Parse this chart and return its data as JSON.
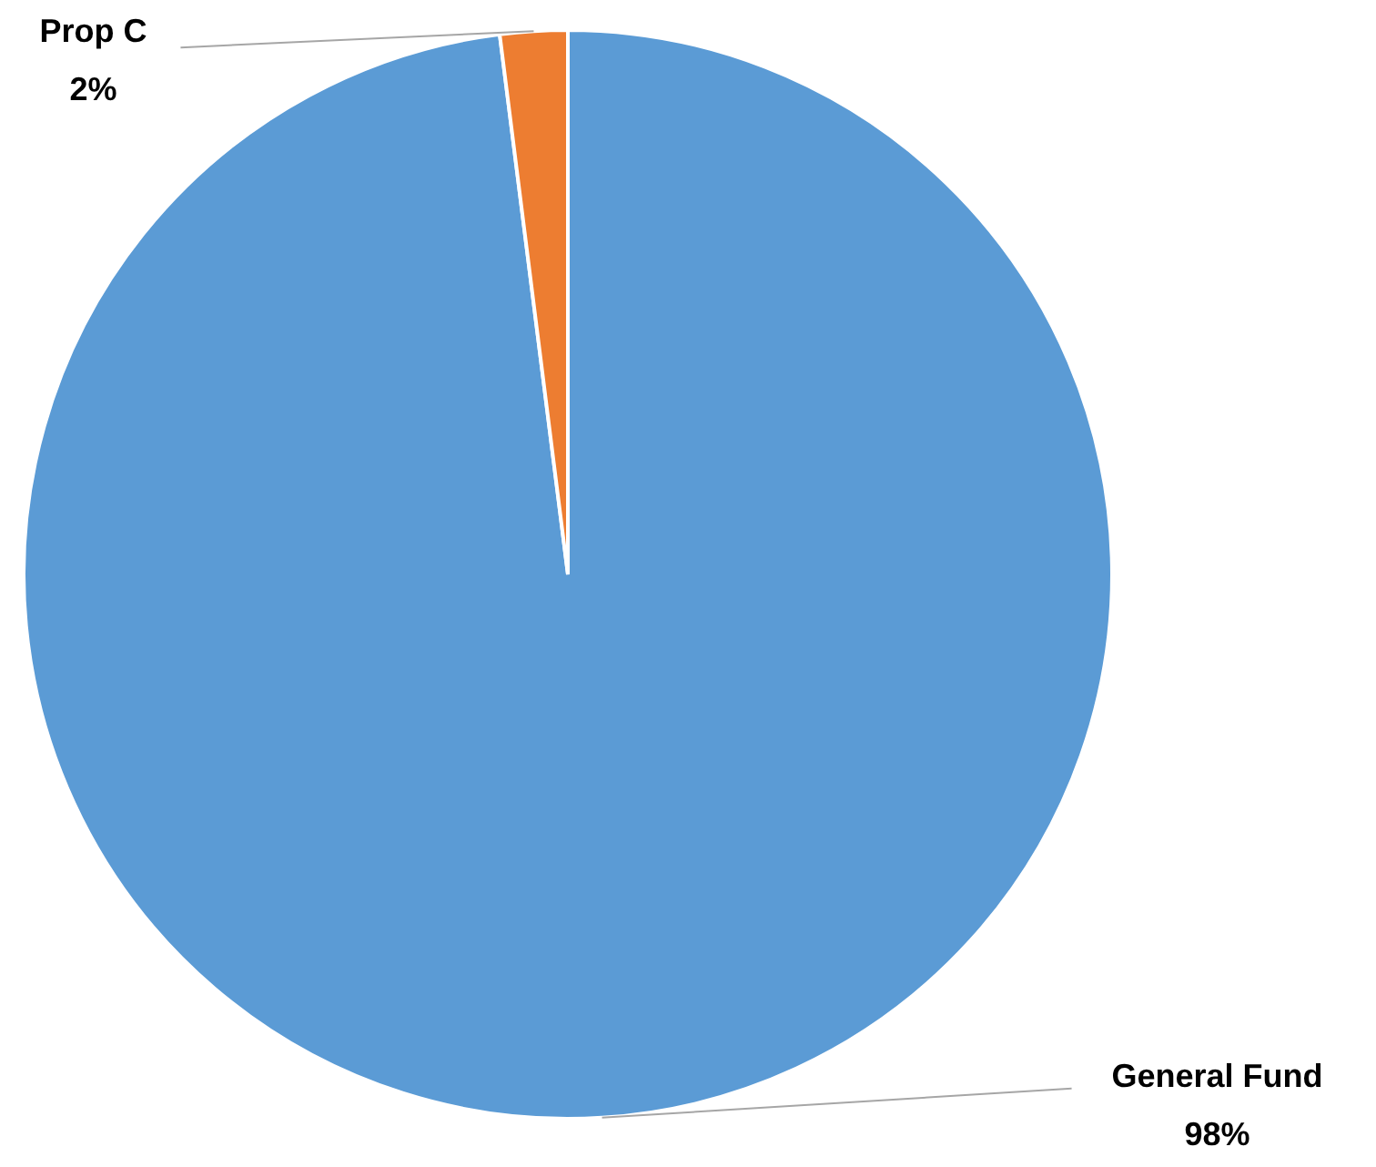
{
  "chart_data": {
    "type": "pie",
    "categories": [
      "General Fund",
      "Prop C"
    ],
    "values": [
      98,
      2
    ],
    "colors": [
      "#5b9bd5",
      "#ed7d31"
    ],
    "value_labels": [
      "98%",
      "2%"
    ]
  }
}
